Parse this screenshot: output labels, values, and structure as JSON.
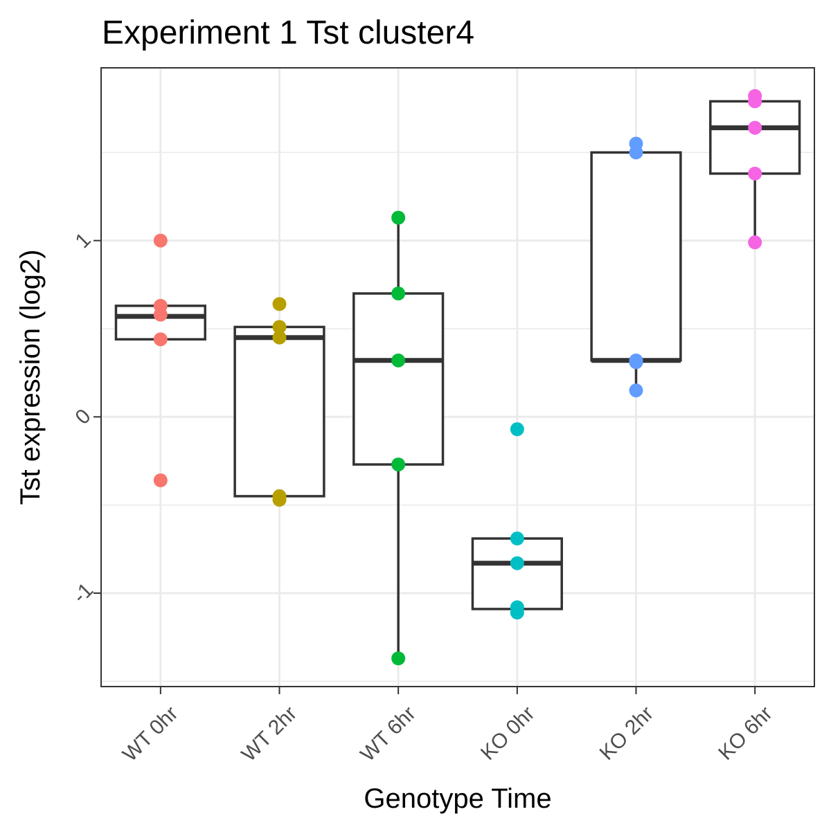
{
  "chart_data": {
    "type": "box",
    "title": "Experiment 1 Tst cluster4",
    "xlabel": "Genotype Time",
    "ylabel": "Tst expression (log2)",
    "ylim": [
      -1.53,
      1.98
    ],
    "yticks": [
      -1,
      0,
      1
    ],
    "ytick_labels": [
      "-1",
      "0",
      "1"
    ],
    "grid": true,
    "legend": "none",
    "categories": [
      "WT 0hr",
      "WT 2hr",
      "WT 6hr",
      "KO 0hr",
      "KO 2hr",
      "KO 6hr"
    ],
    "colors": [
      "#F8766D",
      "#B79F00",
      "#00BA38",
      "#00BFC4",
      "#619CFF",
      "#F564E3"
    ],
    "boxes": [
      {
        "lower": 0.44,
        "q1": 0.44,
        "median": 0.57,
        "q3": 0.63,
        "upper": 0.63
      },
      {
        "lower": -0.45,
        "q1": -0.45,
        "median": 0.45,
        "q3": 0.51,
        "upper": 0.51
      },
      {
        "lower": -1.37,
        "q1": -0.27,
        "median": 0.32,
        "q3": 0.7,
        "upper": 1.13
      },
      {
        "lower": -1.09,
        "q1": -1.09,
        "median": -0.83,
        "q3": -0.69,
        "upper": -0.69
      },
      {
        "lower": 0.15,
        "q1": 0.32,
        "median": 0.32,
        "q3": 1.5,
        "upper": 1.5
      },
      {
        "lower": 0.99,
        "q1": 1.38,
        "median": 1.64,
        "q3": 1.79,
        "upper": 1.79
      }
    ],
    "points": [
      [
        1.0,
        0.63,
        0.58,
        0.44,
        -0.36
      ],
      [
        0.64,
        0.51,
        0.45,
        -0.45,
        -0.47
      ],
      [
        1.13,
        0.7,
        0.32,
        -0.27,
        -1.37
      ],
      [
        -0.07,
        -0.69,
        -0.83,
        -1.08,
        -1.11
      ],
      [
        1.55,
        1.5,
        0.32,
        0.31,
        0.15
      ],
      [
        1.82,
        1.79,
        1.64,
        1.38,
        0.99
      ]
    ]
  }
}
